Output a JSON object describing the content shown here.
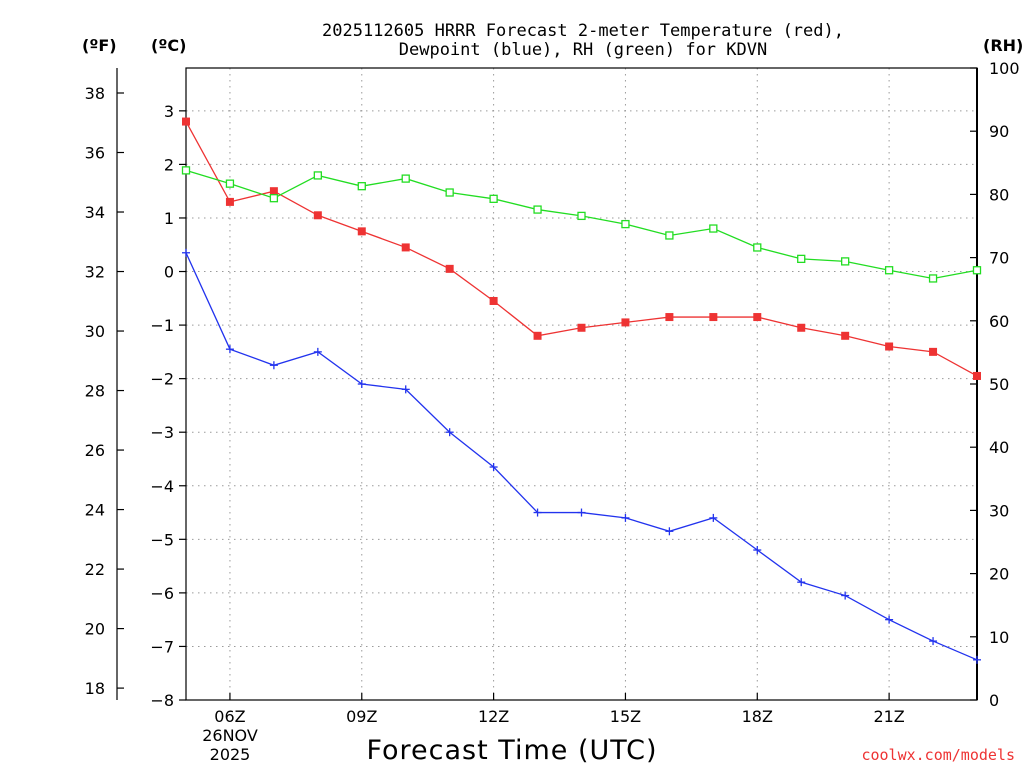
{
  "chart_data": {
    "type": "line",
    "title": [
      "2025112605 HRRR Forecast 2-meter Temperature (red),",
      "Dewpoint (blue), RH (green) for KDVN"
    ],
    "xlabel": "Forecast Time (UTC)",
    "credit": "coolwx.com/models",
    "date_label": [
      "26NOV",
      "2025"
    ],
    "unit_labels": {
      "fahrenheit": "(ºF)",
      "celsius": "(ºC)",
      "rh": "(RH)"
    },
    "x_ticks": [
      "06Z",
      "09Z",
      "12Z",
      "15Z",
      "18Z",
      "21Z"
    ],
    "x_tick_hours": [
      6,
      9,
      12,
      15,
      18,
      21
    ],
    "xlim": [
      5,
      23
    ],
    "ylim_celsius": [
      -8,
      3.8
    ],
    "ylim_fahrenheit": [
      17.6,
      38.84
    ],
    "ylim_rh": [
      0,
      100
    ],
    "yticks_celsius": [
      "−8",
      "−7",
      "−6",
      "−5",
      "−4",
      "−3",
      "−2",
      "−1",
      "0",
      "1",
      "2",
      "3"
    ],
    "yticks_fahrenheit": [
      "18",
      "20",
      "22",
      "24",
      "26",
      "28",
      "30",
      "32",
      "34",
      "36",
      "38"
    ],
    "yticks_rh": [
      "0",
      "10",
      "20",
      "30",
      "40",
      "50",
      "60",
      "70",
      "80",
      "90",
      "100"
    ],
    "colors": {
      "temperature": "#ee3333",
      "dewpoint": "#2233ee",
      "rh": "#22dd22",
      "credit": "#ee3333"
    },
    "x": [
      5,
      6,
      7,
      8,
      9,
      10,
      11,
      12,
      13,
      14,
      15,
      16,
      17,
      18,
      19,
      20,
      21,
      22,
      23
    ],
    "series": [
      {
        "name": "Temperature",
        "axis": "celsius",
        "marker": "filled-square",
        "values": [
          2.8,
          1.3,
          1.5,
          1.05,
          0.75,
          0.45,
          0.05,
          -0.55,
          -1.2,
          -1.05,
          -0.95,
          -0.85,
          -0.85,
          -0.85,
          -1.05,
          -1.2,
          -1.4,
          -1.5,
          -1.95
        ]
      },
      {
        "name": "Dewpoint",
        "axis": "celsius",
        "marker": "plus",
        "values": [
          0.35,
          -1.45,
          -1.75,
          -1.5,
          -2.1,
          -2.2,
          -3.0,
          -3.65,
          -4.5,
          -4.5,
          -4.6,
          -4.85,
          -4.6,
          -5.2,
          -5.8,
          -6.05,
          -6.5,
          -6.9,
          -7.25
        ]
      },
      {
        "name": "RH",
        "axis": "rh",
        "marker": "open-square",
        "values": [
          83.8,
          81.7,
          79.4,
          83.0,
          81.3,
          82.5,
          80.3,
          79.3,
          77.6,
          76.6,
          75.3,
          73.5,
          74.6,
          71.6,
          69.8,
          69.4,
          68.0,
          66.7,
          68.0
        ]
      }
    ]
  }
}
